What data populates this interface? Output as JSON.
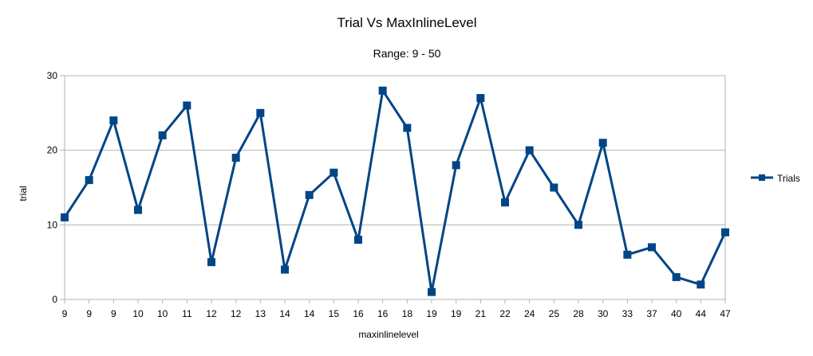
{
  "chart_data": {
    "type": "line",
    "title": "Trial Vs MaxInlineLevel",
    "subtitle": "Range: 9 - 50",
    "xlabel": "maxinlinelevel",
    "ylabel": "trial",
    "ylim": [
      0,
      30
    ],
    "yticks": [
      "0",
      "10",
      "20",
      "30"
    ],
    "grid": "horizontal",
    "legend_position": "right",
    "colors": {
      "series": "#004586",
      "grid": "#b3b3b3",
      "axis": "#b3b3b3"
    },
    "categories": [
      "9",
      "9",
      "9",
      "10",
      "10",
      "11",
      "12",
      "12",
      "13",
      "14",
      "14",
      "15",
      "16",
      "16",
      "18",
      "19",
      "19",
      "21",
      "22",
      "24",
      "25",
      "28",
      "30",
      "33",
      "37",
      "40",
      "44",
      "47"
    ],
    "series": [
      {
        "name": "Trials",
        "values": [
          11,
          16,
          24,
          12,
          22,
          26,
          5,
          19,
          25,
          4,
          14,
          17,
          8,
          28,
          23,
          1,
          18,
          27,
          13,
          20,
          15,
          10,
          21,
          6,
          7,
          3,
          2,
          9
        ]
      }
    ]
  }
}
